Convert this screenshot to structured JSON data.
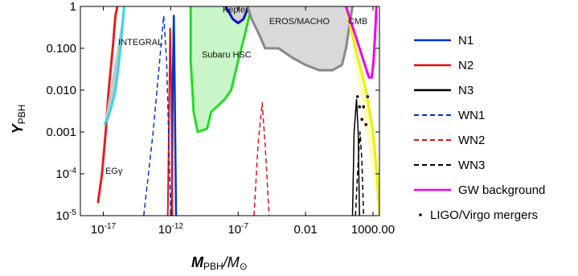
{
  "chart_data": {
    "type": "line",
    "xlabel": "M_PBH/M_⊙",
    "ylabel": "Y_PBH",
    "x_scale": "log",
    "y_scale": "log",
    "xlim": [
      2e-19,
      3000
    ],
    "ylim": [
      1e-05,
      1
    ],
    "x_ticks": [
      {
        "value": 1e-17,
        "label": "10^-17"
      },
      {
        "value": 1e-12,
        "label": "10^-12"
      },
      {
        "value": 1e-07,
        "label": "10^-7"
      },
      {
        "value": 0.01,
        "label": "0.01"
      },
      {
        "value": 1000,
        "label": "1000.00"
      }
    ],
    "y_ticks": [
      {
        "value": 1e-05,
        "label": "10^-5"
      },
      {
        "value": 0.0001,
        "label": "10^-4"
      },
      {
        "value": 0.001,
        "label": "0.001"
      },
      {
        "value": 0.01,
        "label": "0.010"
      },
      {
        "value": 0.1,
        "label": "0.100"
      },
      {
        "value": 1,
        "label": "1"
      }
    ],
    "constraints": [
      {
        "label": "EGγ",
        "fill": "#f6c6c6",
        "stroke": "#e02020",
        "label_x": 1.4e-17,
        "label_y": 0.0001,
        "points": [
          [
            4e-18,
            2e-05
          ],
          [
            8e-18,
            0.0001
          ],
          [
            1.5e-17,
            0.001
          ],
          [
            2.5e-17,
            0.01
          ],
          [
            5e-17,
            0.1
          ],
          [
            8e-17,
            0.6
          ],
          [
            1.1e-16,
            1
          ]
        ]
      },
      {
        "label": "INTEGRAL",
        "fill": "#c8c8c8",
        "stroke": "#33d6ee",
        "label_x": 1.3e-16,
        "label_y": 0.12,
        "points": [
          [
            1.2e-17,
            0.0015
          ],
          [
            2e-17,
            0.002
          ],
          [
            4e-17,
            0.004
          ],
          [
            8e-17,
            0.01
          ],
          [
            1.5e-16,
            0.05
          ],
          [
            2.5e-16,
            0.3
          ],
          [
            3.5e-16,
            1
          ]
        ]
      },
      {
        "label": "Subaru HSC",
        "fill": "#c9f5c9",
        "stroke": "#22dd22",
        "label_x": 2e-10,
        "label_y": 0.06,
        "points": [
          [
            3e-11,
            1
          ],
          [
            3e-11,
            0.05
          ],
          [
            5e-11,
            0.003
          ],
          [
            1e-10,
            0.001
          ],
          [
            5e-10,
            0.0012
          ],
          [
            1e-09,
            0.003
          ],
          [
            1e-08,
            0.006
          ],
          [
            3e-08,
            0.01
          ],
          [
            1e-07,
            0.05
          ],
          [
            3e-07,
            0.2
          ],
          [
            1e-06,
            1
          ]
        ]
      },
      {
        "label": "Kepler",
        "fill": "#d3d3d3",
        "stroke": "#1111cc",
        "label_x": 7e-09,
        "label_y": 0.72,
        "points": [
          [
            1.2e-08,
            1
          ],
          [
            4e-08,
            0.5
          ],
          [
            1e-07,
            0.4
          ],
          [
            2.5e-07,
            0.5
          ],
          [
            6e-07,
            1
          ]
        ]
      },
      {
        "label": "EROS/MACHO",
        "fill": "#d9d9d9",
        "stroke": "#888888",
        "label_x": 2e-05,
        "label_y": 0.38,
        "points": [
          [
            5e-07,
            1
          ],
          [
            1e-06,
            0.5
          ],
          [
            4e-06,
            0.2
          ],
          [
            1e-05,
            0.1
          ],
          [
            0.0001,
            0.1
          ],
          [
            0.001,
            0.06
          ],
          [
            0.01,
            0.04
          ],
          [
            0.1,
            0.03
          ],
          [
            1,
            0.03
          ],
          [
            5,
            0.04
          ],
          [
            10,
            0.1
          ],
          [
            30,
            1
          ]
        ]
      },
      {
        "label": "CMB",
        "fill": "#fdfdc0",
        "stroke": "#eeee00",
        "label_x": 14,
        "label_y": 0.38,
        "points": [
          [
            10,
            1
          ],
          [
            50,
            0.1
          ],
          [
            300,
            0.01
          ],
          [
            1000,
            0.001
          ],
          [
            2000,
            0.0001
          ],
          [
            3000,
            1e-05
          ]
        ]
      },
      {
        "label": "",
        "fill": "none",
        "stroke": "#ee00ee",
        "points": [
          [
            10,
            1
          ],
          [
            50,
            0.2
          ],
          [
            200,
            0.05
          ],
          [
            500,
            0.02
          ],
          [
            800,
            0.02
          ],
          [
            1100,
            0.05
          ],
          [
            1500,
            0.3
          ],
          [
            1800,
            1
          ]
        ]
      }
    ],
    "series": [
      {
        "name": "N1",
        "color": "#0033cc",
        "dash": "solid",
        "width": 2.5,
        "points": [
          [
            1.2e-12,
            1e-05
          ],
          [
            1.4e-12,
            0.01
          ],
          [
            1.7e-12,
            0.6
          ],
          [
            2e-12,
            0.01
          ],
          [
            2.5e-12,
            1e-05
          ]
        ]
      },
      {
        "name": "N2",
        "color": "#e01010",
        "dash": "solid",
        "width": 2,
        "points": [
          [
            6e-13,
            1e-05
          ],
          [
            8e-13,
            0.01
          ],
          [
            9e-13,
            0.3
          ],
          [
            1.1e-12,
            0.01
          ],
          [
            1.3e-12,
            1e-05
          ]
        ]
      },
      {
        "name": "N3",
        "color": "#000000",
        "dash": "solid",
        "width": 1.5,
        "points": [
          [
            30,
            1e-05
          ],
          [
            40,
            0.001
          ],
          [
            60,
            0.006
          ],
          [
            80,
            0.001
          ],
          [
            100,
            1e-05
          ]
        ]
      },
      {
        "name": "WN1",
        "color": "#0033cc",
        "dash": "dashed",
        "width": 1.5,
        "points": [
          [
            1e-14,
            1e-05
          ],
          [
            5e-14,
            0.001
          ],
          [
            1.5e-13,
            0.05
          ],
          [
            3e-13,
            0.6
          ],
          [
            5e-13,
            0.05
          ],
          [
            1e-12,
            1e-05
          ]
        ]
      },
      {
        "name": "WN2",
        "color": "#e01010",
        "dash": "dashed",
        "width": 1.5,
        "points": [
          [
            1.5e-06,
            1e-05
          ],
          [
            3e-06,
            0.0005
          ],
          [
            6e-06,
            0.005
          ],
          [
            1e-05,
            0.0005
          ],
          [
            2e-05,
            1e-05
          ]
        ]
      },
      {
        "name": "WN3",
        "color": "#000000",
        "dash": "dashed",
        "width": 1.5,
        "points": [
          [
            50,
            1e-05
          ],
          [
            80,
            0.0002
          ],
          [
            110,
            0.001
          ],
          [
            150,
            0.0002
          ],
          [
            200,
            1e-05
          ]
        ]
      }
    ],
    "scatter": {
      "name": "LIGO/Virgo mergers",
      "color": "#000000",
      "points": [
        [
          70,
          0.007
        ],
        [
          100,
          0.004
        ],
        [
          150,
          0.002
        ],
        [
          200,
          0.004
        ],
        [
          300,
          0.0015
        ],
        [
          400,
          0.007
        ]
      ]
    },
    "legend": {
      "placement": "right",
      "entries": [
        {
          "name": "N1",
          "color": "#0033cc",
          "dash": "solid"
        },
        {
          "name": "N2",
          "color": "#e01010",
          "dash": "solid"
        },
        {
          "name": "N3",
          "color": "#000000",
          "dash": "solid"
        },
        {
          "name": "WN1",
          "color": "#0033cc",
          "dash": "dashed"
        },
        {
          "name": "WN2",
          "color": "#e01010",
          "dash": "dashed"
        },
        {
          "name": "WN3",
          "color": "#000000",
          "dash": "dashed"
        },
        {
          "name": "GW background",
          "color": "#ee00ee",
          "dash": "solid"
        },
        {
          "name": "LIGO/Virgo mergers",
          "color": "#000000",
          "dash": "dot"
        }
      ]
    }
  },
  "axis_text": {
    "x_main": "M",
    "x_sub": "PBH",
    "x_slash": "/M",
    "x_sub2": "⊙",
    "y_main": "Y",
    "y_sub": "PBH"
  }
}
